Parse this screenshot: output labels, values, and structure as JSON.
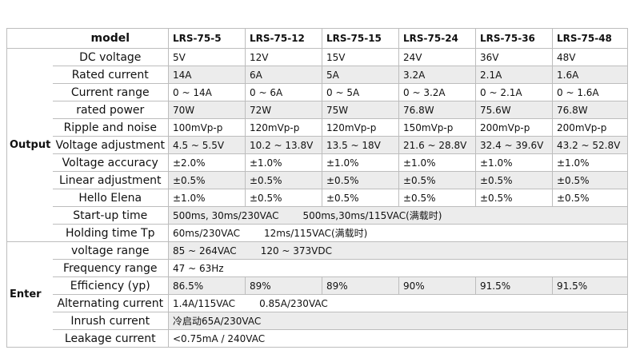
{
  "header": {
    "label": "model",
    "models": [
      "LRS-75-5",
      "LRS-75-12",
      "LRS-75-15",
      "LRS-75-24",
      "LRS-75-36",
      "LRS-75-48"
    ]
  },
  "sections": [
    {
      "name": "Output",
      "rows": [
        {
          "label": "DC voltage",
          "cells": [
            "5V",
            "12V",
            "15V",
            "24V",
            "36V",
            "48V"
          ]
        },
        {
          "label": "Rated current",
          "cells": [
            "14A",
            "6A",
            "5A",
            "3.2A",
            "2.1A",
            "1.6A"
          ]
        },
        {
          "label": "Current range",
          "cells": [
            "0 ~ 14A",
            "0 ~ 6A",
            "0 ~ 5A",
            "0 ~ 3.2A",
            "0 ~ 2.1A",
            "0 ~ 1.6A"
          ]
        },
        {
          "label": "rated power",
          "cells": [
            "70W",
            "72W",
            "75W",
            "76.8W",
            "75.6W",
            "76.8W"
          ]
        },
        {
          "label": "Ripple and noise",
          "cells": [
            "100mVp-p",
            "120mVp-p",
            "120mVp-p",
            "150mVp-p",
            "200mVp-p",
            "200mVp-p"
          ]
        },
        {
          "label": "Voltage adjustment",
          "cells": [
            "4.5 ~ 5.5V",
            "10.2 ~ 13.8V",
            "13.5 ~ 18V",
            "21.6 ~ 28.8V",
            "32.4 ~ 39.6V",
            "43.2 ~ 52.8V"
          ]
        },
        {
          "label": "Voltage accuracy",
          "cells": [
            "±2.0%",
            "±1.0%",
            "±1.0%",
            "±1.0%",
            "±1.0%",
            "±1.0%"
          ]
        },
        {
          "label": "Linear adjustment",
          "cells": [
            "±0.5%",
            "±0.5%",
            "±0.5%",
            "±0.5%",
            "±0.5%",
            "±0.5%"
          ]
        },
        {
          "label": "Hello Elena",
          "cells": [
            "±1.0%",
            "±0.5%",
            "±0.5%",
            "±0.5%",
            "±0.5%",
            "±0.5%"
          ]
        },
        {
          "label": "Start-up time",
          "span": [
            "500ms, 30ms/230VAC",
            "500ms,30ms/115VAC(满载时)"
          ]
        },
        {
          "label": "Holding time Tp",
          "span": [
            "60ms/230VAC",
            "12ms/115VAC(满载时)"
          ]
        }
      ]
    },
    {
      "name": "Enter",
      "rows": [
        {
          "label": "voltage range",
          "span": [
            "85 ~ 264VAC",
            "120 ~ 373VDC"
          ]
        },
        {
          "label": "Frequency range",
          "span": [
            "47 ~ 63Hz"
          ]
        },
        {
          "label": "Efficiency (yp)",
          "cells": [
            "86.5%",
            "89%",
            "89%",
            "90%",
            "91.5%",
            "91.5%"
          ]
        },
        {
          "label": "Alternating current",
          "span": [
            "1.4A/115VAC",
            "0.85A/230VAC"
          ]
        },
        {
          "label": "Inrush current",
          "span": [
            "冷启动65A/230VAC"
          ]
        },
        {
          "label": "Leakage current",
          "span": [
            "<0.75mA / 240VAC"
          ]
        }
      ]
    }
  ]
}
